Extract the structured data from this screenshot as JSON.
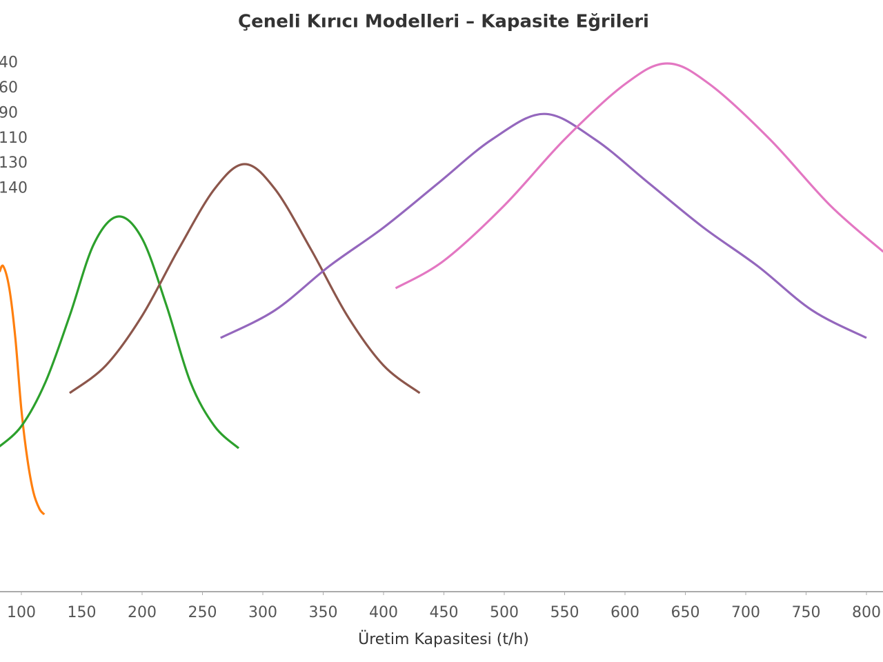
{
  "chart_data": {
    "type": "line",
    "title": "Çeneli Kırıcı Modelleri – Kapasite Eğrileri",
    "x_label": "Üretim Kapasitesi (t/h)",
    "xlim": [
      82.3,
      813.7
    ],
    "xticks": [
      100,
      150,
      200,
      250,
      300,
      350,
      400,
      450,
      500,
      550,
      600,
      650,
      700,
      750,
      800
    ],
    "ylim": [
      0,
      100
    ],
    "series": [
      {
        "name": "40",
        "color": "#1f77b4",
        "x": [],
        "values": []
      },
      {
        "name": "60",
        "color": "#ff7f0e",
        "x": [
          82,
          85,
          90,
          95,
          100,
          105,
          110,
          115,
          119
        ],
        "values": [
          58,
          59,
          55,
          46,
          33,
          24,
          18,
          15,
          14
        ]
      },
      {
        "name": "90",
        "color": "#2ca02c",
        "x": [
          80,
          100,
          120,
          140,
          160,
          180,
          200,
          220,
          240,
          260,
          280
        ],
        "values": [
          26,
          30,
          38,
          50,
          63,
          68,
          64,
          52,
          38,
          30,
          26
        ]
      },
      {
        "name": "110",
        "color": "#8c564b",
        "x": [
          140,
          170,
          200,
          230,
          260,
          285,
          310,
          340,
          370,
          400,
          430
        ],
        "values": [
          36,
          41,
          50,
          62,
          73,
          77.5,
          73,
          62,
          50,
          41,
          36
        ]
      },
      {
        "name": "130",
        "color": "#9467bd",
        "x": [
          265,
          310,
          355,
          400,
          445,
          490,
          533,
          575,
          620,
          665,
          710,
          755,
          800
        ],
        "values": [
          46,
          51,
          59,
          66,
          74,
          82,
          86.6,
          82,
          74,
          66,
          59,
          51,
          46
        ]
      },
      {
        "name": "140",
        "color": "#e377c2",
        "x": [
          410,
          450,
          500,
          550,
          600,
          635,
          670,
          720,
          770,
          814
        ],
        "values": [
          55,
          60,
          70,
          82,
          92,
          95.75,
          92,
          82,
          70,
          61.6
        ]
      }
    ]
  }
}
